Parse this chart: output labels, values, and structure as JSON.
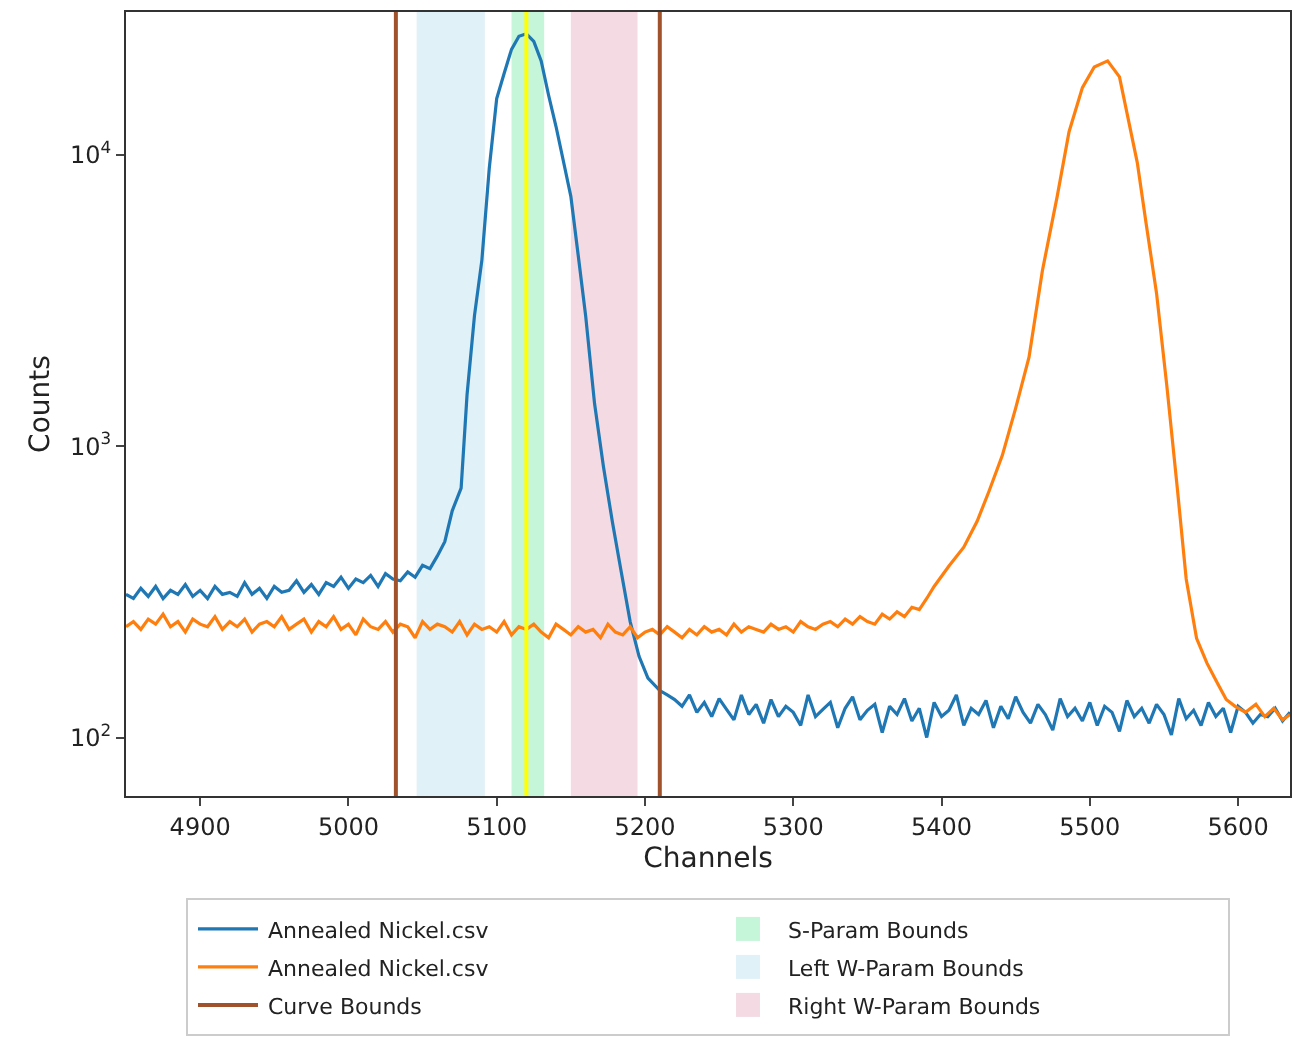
{
  "chart_data": {
    "type": "line",
    "xlabel": "Channels",
    "ylabel": "Counts",
    "log": "y",
    "grid": false,
    "legend": "bottom",
    "marker": "none",
    "line_style": "solid",
    "xlim": [
      4850,
      5635
    ],
    "xticks": [
      4900,
      5000,
      5100,
      5200,
      5300,
      5400,
      5500,
      5600
    ],
    "ylim": [
      63,
      30900
    ],
    "yticks": [
      {
        "value": 100,
        "label": "10$^{2}$"
      },
      {
        "value": 1000,
        "label": "10$^{3}$"
      },
      {
        "value": 10000,
        "label": "10$^{4}$"
      }
    ],
    "series": [
      {
        "name": "Annealed Nickel.csv",
        "color": "#1f77b4",
        "x": [
          4850,
          4855,
          4860,
          4865,
          4870,
          4875,
          4880,
          4885,
          4890,
          4895,
          4900,
          4905,
          4910,
          4915,
          4920,
          4925,
          4930,
          4935,
          4940,
          4945,
          4950,
          4955,
          4960,
          4965,
          4970,
          4975,
          4980,
          4985,
          4990,
          4995,
          5000,
          5005,
          5010,
          5015,
          5020,
          5025,
          5030,
          5035,
          5040,
          5045,
          5050,
          5055,
          5060,
          5065,
          5070,
          5076,
          5080,
          5085,
          5090,
          5095,
          5100,
          5105,
          5110,
          5115,
          5120,
          5125,
          5130,
          5135,
          5140,
          5145,
          5150,
          5155,
          5160,
          5166,
          5172,
          5178,
          5184,
          5190,
          5196,
          5202,
          5210,
          5215,
          5220,
          5225,
          5230,
          5235,
          5240,
          5245,
          5250,
          5255,
          5260,
          5265,
          5270,
          5275,
          5280,
          5285,
          5290,
          5295,
          5300,
          5305,
          5310,
          5315,
          5320,
          5325,
          5330,
          5335,
          5340,
          5345,
          5350,
          5355,
          5360,
          5365,
          5370,
          5375,
          5380,
          5385,
          5390,
          5395,
          5400,
          5405,
          5410,
          5415,
          5420,
          5425,
          5430,
          5435,
          5440,
          5445,
          5450,
          5455,
          5460,
          5465,
          5470,
          5475,
          5480,
          5485,
          5490,
          5495,
          5500,
          5505,
          5510,
          5515,
          5520,
          5525,
          5530,
          5535,
          5540,
          5545,
          5550,
          5555,
          5560,
          5565,
          5570,
          5575,
          5580,
          5585,
          5590,
          5595,
          5600,
          5605,
          5610,
          5615,
          5620,
          5625,
          5630,
          5635
        ],
        "values": [
          310,
          300,
          325,
          305,
          330,
          300,
          320,
          310,
          335,
          305,
          320,
          300,
          330,
          310,
          315,
          305,
          340,
          310,
          325,
          300,
          330,
          315,
          320,
          345,
          315,
          335,
          310,
          340,
          330,
          355,
          325,
          350,
          340,
          360,
          330,
          365,
          350,
          345,
          370,
          355,
          390,
          380,
          420,
          470,
          600,
          718,
          1500,
          2800,
          4350,
          9000,
          15600,
          19000,
          23000,
          25500,
          26000,
          24500,
          21000,
          16000,
          12500,
          9500,
          7200,
          4500,
          2800,
          1400,
          850,
          550,
          370,
          250,
          190,
          160,
          145,
          140,
          135,
          128,
          140,
          122,
          132,
          118,
          136,
          125,
          115,
          140,
          120,
          130,
          112,
          135,
          118,
          128,
          122,
          110,
          140,
          118,
          125,
          132,
          108,
          126,
          138,
          115,
          124,
          130,
          104,
          128,
          120,
          136,
          114,
          126,
          100,
          132,
          118,
          124,
          140,
          110,
          126,
          120,
          134,
          108,
          128,
          116,
          138,
          122,
          112,
          130,
          120,
          106,
          136,
          118,
          126,
          114,
          132,
          110,
          128,
          122,
          105,
          134,
          118,
          126,
          112,
          130,
          120,
          102,
          136,
          116,
          124,
          110,
          132,
          118,
          126,
          104,
          128,
          122,
          112,
          120,
          118,
          126,
          114,
          122
        ]
      },
      {
        "name": "Annealed Nickel.csv",
        "color": "#ff7f0e",
        "x": [
          4850,
          4855,
          4860,
          4865,
          4870,
          4875,
          4880,
          4885,
          4890,
          4895,
          4900,
          4905,
          4910,
          4915,
          4920,
          4925,
          4930,
          4935,
          4940,
          4945,
          4950,
          4955,
          4960,
          4965,
          4970,
          4975,
          4980,
          4985,
          4990,
          4995,
          5000,
          5005,
          5010,
          5015,
          5020,
          5025,
          5030,
          5035,
          5040,
          5045,
          5050,
          5055,
          5060,
          5065,
          5070,
          5075,
          5080,
          5085,
          5090,
          5095,
          5100,
          5105,
          5110,
          5115,
          5120,
          5125,
          5130,
          5135,
          5140,
          5145,
          5150,
          5155,
          5160,
          5165,
          5170,
          5175,
          5180,
          5185,
          5190,
          5195,
          5200,
          5205,
          5210,
          5215,
          5220,
          5225,
          5230,
          5235,
          5240,
          5245,
          5250,
          5255,
          5260,
          5265,
          5270,
          5275,
          5280,
          5285,
          5290,
          5295,
          5300,
          5305,
          5310,
          5315,
          5320,
          5325,
          5330,
          5335,
          5340,
          5345,
          5350,
          5355,
          5360,
          5365,
          5370,
          5375,
          5380,
          5385,
          5390,
          5395,
          5405,
          5415,
          5424,
          5432,
          5441,
          5450,
          5459,
          5468,
          5478,
          5486,
          5495,
          5503,
          5512,
          5520,
          5532,
          5538,
          5545,
          5552,
          5559,
          5565,
          5572,
          5579,
          5586,
          5592,
          5598,
          5605,
          5612,
          5618,
          5624,
          5630,
          5635
        ],
        "values": [
          240,
          250,
          235,
          255,
          245,
          265,
          240,
          250,
          230,
          255,
          245,
          240,
          260,
          235,
          250,
          240,
          255,
          230,
          245,
          250,
          240,
          260,
          235,
          245,
          255,
          230,
          250,
          240,
          260,
          235,
          245,
          225,
          255,
          240,
          235,
          250,
          230,
          245,
          240,
          220,
          250,
          235,
          245,
          240,
          230,
          250,
          225,
          245,
          235,
          240,
          230,
          250,
          225,
          240,
          235,
          245,
          230,
          220,
          245,
          235,
          225,
          240,
          230,
          235,
          220,
          245,
          230,
          225,
          240,
          220,
          230,
          235,
          225,
          240,
          230,
          220,
          235,
          225,
          240,
          230,
          235,
          225,
          245,
          230,
          240,
          235,
          230,
          245,
          235,
          240,
          230,
          250,
          240,
          235,
          245,
          250,
          240,
          255,
          245,
          260,
          250,
          245,
          265,
          255,
          270,
          260,
          280,
          275,
          300,
          330,
          388,
          450,
          552,
          700,
          930,
          1350,
          2020,
          4000,
          7200,
          12000,
          17000,
          20000,
          21000,
          18500,
          9400,
          5800,
          3350,
          1600,
          718,
          350,
          219,
          180,
          154,
          135,
          128,
          122,
          130,
          118,
          126,
          115,
          120
        ]
      }
    ],
    "ref_lines": [
      {
        "axis": "x",
        "value": 5032,
        "label": "Curve Bounds",
        "color": "#a0522d"
      },
      {
        "axis": "x",
        "value": 5210,
        "color": "#a0522d"
      },
      {
        "axis": "x",
        "value": 5120,
        "color": "#ffff00"
      }
    ],
    "bands": [
      {
        "axis": "x",
        "from": 5110,
        "to": 5132,
        "label": "S-Param Bounds",
        "color": "#c6f6da"
      },
      {
        "axis": "x",
        "from": 5046,
        "to": 5092,
        "label": "Left W-Param Bounds",
        "color": "#e1f1f8"
      },
      {
        "axis": "x",
        "from": 5150,
        "to": 5195,
        "label": "Right W-Param Bounds",
        "color": "#f4dbe3"
      }
    ]
  }
}
